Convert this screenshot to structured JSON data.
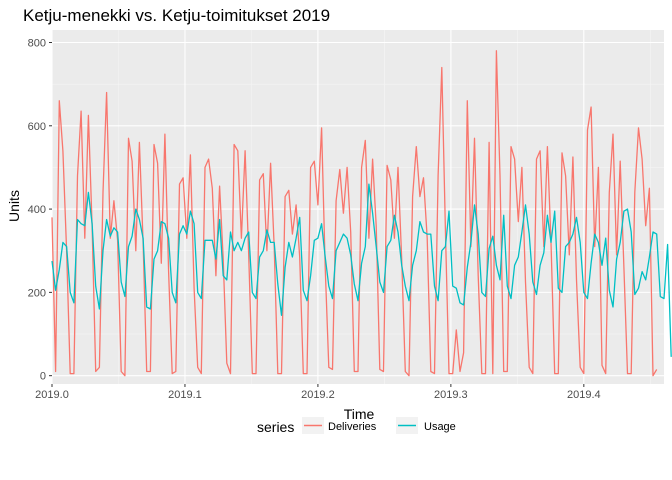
{
  "chart_data": {
    "type": "line",
    "title": "Ketju-menekki vs. Ketju-toimitukset 2019",
    "xlabel": "Time",
    "ylabel": "Units",
    "xlim": [
      2019.0,
      2019.4603
    ],
    "ylim": [
      -20,
      830
    ],
    "x_ticks": [
      2019.0,
      2019.1,
      2019.2,
      2019.3,
      2019.4
    ],
    "x_tick_labels": [
      "2019.0",
      "2019.1",
      "2019.2",
      "2019.3",
      "2019.4"
    ],
    "y_ticks": [
      0,
      200,
      400,
      600,
      800
    ],
    "y_tick_labels": [
      "0",
      "200",
      "400",
      "600",
      "800"
    ],
    "grid": true,
    "legend_position": "bottom",
    "legend_title": "series",
    "x_start": 2019.0,
    "x_step": 0.0027397,
    "series": [
      {
        "name": "Deliveries",
        "color": "#F8766D",
        "values": [
          380,
          10,
          660,
          540,
          300,
          5,
          5,
          480,
          635,
          330,
          625,
          360,
          10,
          20,
          440,
          680,
          330,
          420,
          325,
          10,
          0,
          570,
          515,
          300,
          560,
          320,
          10,
          10,
          555,
          510,
          270,
          580,
          250,
          5,
          10,
          460,
          475,
          330,
          530,
          210,
          20,
          5,
          500,
          520,
          450,
          240,
          455,
          280,
          30,
          5,
          555,
          540,
          330,
          540,
          290,
          5,
          5,
          470,
          485,
          300,
          510,
          310,
          5,
          5,
          430,
          445,
          340,
          410,
          285,
          5,
          5,
          500,
          515,
          410,
          595,
          260,
          20,
          15,
          420,
          495,
          390,
          500,
          345,
          10,
          10,
          500,
          565,
          330,
          520,
          360,
          15,
          10,
          505,
          470,
          330,
          500,
          280,
          10,
          0,
          430,
          550,
          430,
          475,
          330,
          10,
          5,
          480,
          740,
          350,
          5,
          5,
          110,
          10,
          55,
          660,
          310,
          570,
          240,
          5,
          5,
          560,
          5,
          780,
          480,
          10,
          10,
          550,
          520,
          370,
          500,
          225,
          20,
          5,
          520,
          540,
          310,
          550,
          320,
          5,
          5,
          535,
          480,
          290,
          525,
          230,
          20,
          5,
          590,
          645,
          310,
          500,
          25,
          5,
          440,
          580,
          290,
          515,
          260,
          5,
          5,
          440,
          595,
          520,
          360,
          450,
          0,
          15
        ]
      },
      {
        "name": "Usage",
        "color": "#00BFC4",
        "values": [
          275,
          205,
          255,
          320,
          310,
          200,
          175,
          375,
          365,
          360,
          440,
          365,
          215,
          160,
          300,
          375,
          335,
          355,
          345,
          225,
          190,
          310,
          335,
          400,
          375,
          330,
          165,
          160,
          280,
          300,
          370,
          365,
          330,
          200,
          175,
          340,
          360,
          340,
          395,
          365,
          200,
          185,
          325,
          325,
          325,
          280,
          375,
          240,
          230,
          345,
          300,
          320,
          300,
          330,
          345,
          200,
          185,
          285,
          300,
          350,
          320,
          320,
          220,
          145,
          260,
          320,
          285,
          330,
          380,
          205,
          180,
          240,
          325,
          330,
          365,
          285,
          215,
          185,
          300,
          320,
          340,
          330,
          290,
          220,
          180,
          270,
          310,
          460,
          390,
          310,
          225,
          200,
          310,
          325,
          385,
          345,
          265,
          215,
          180,
          265,
          300,
          370,
          345,
          340,
          340,
          215,
          180,
          300,
          310,
          395,
          215,
          210,
          175,
          170,
          260,
          320,
          410,
          340,
          200,
          190,
          305,
          335,
          265,
          230,
          385,
          215,
          185,
          265,
          285,
          345,
          410,
          340,
          225,
          195,
          265,
          295,
          385,
          320,
          395,
          210,
          200,
          310,
          320,
          340,
          380,
          320,
          200,
          185,
          270,
          340,
          320,
          265,
          330,
          205,
          165,
          280,
          320,
          395,
          400,
          345,
          195,
          210,
          250,
          230,
          285,
          345,
          340,
          190,
          185,
          315,
          45
        ]
      }
    ]
  }
}
